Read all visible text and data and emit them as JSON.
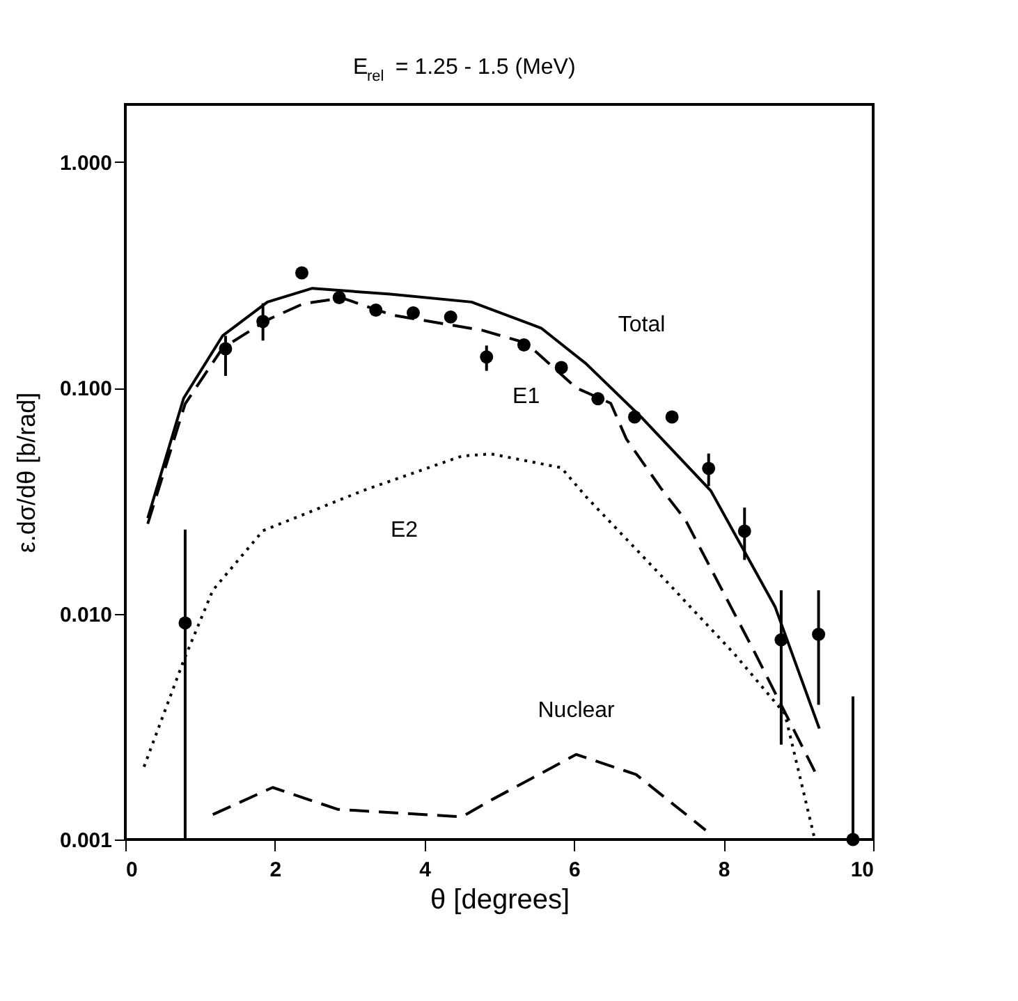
{
  "chart_data": {
    "type": "line",
    "title": "E$_{rel}$= 1.25 - 1.5 (MeV)",
    "xlabel": "θ  [degrees]",
    "ylabel": "ε.dσ/dθ  [b/rad]",
    "log": "y",
    "xlim": [
      0,
      10
    ],
    "ylim": [
      0.001,
      1.8
    ],
    "xticks": [
      0,
      2,
      4,
      6,
      8,
      10
    ],
    "yticks": [
      {
        "value": 0.001,
        "label": "0.001"
      },
      {
        "value": 0.01,
        "label": "0.010"
      },
      {
        "value": 0.1,
        "label": "0.100"
      },
      {
        "value": 1,
        "label": "1.000"
      }
    ],
    "grid": false,
    "series": [
      {
        "name": "Total",
        "color": "#000000",
        "line_style": "solid",
        "x": [
          0.3,
          0.78,
          1.3,
          1.9,
          2.5,
          3.54,
          4.63,
          5.56,
          6.16,
          6.92,
          7.83,
          8.69,
          9.28
        ],
        "values": [
          0.0265,
          0.09,
          0.17,
          0.24,
          0.276,
          0.26,
          0.24,
          0.184,
          0.128,
          0.073,
          0.035,
          0.0107,
          0.0031
        ]
      },
      {
        "name": "E1",
        "color": "#000000",
        "line_style": "dashed",
        "x": [
          0.3,
          0.8,
          1.3,
          1.9,
          2.38,
          2.9,
          3.57,
          4.77,
          5.36,
          6.03,
          6.49,
          6.7,
          7.16,
          7.49,
          8.4,
          9.22
        ],
        "values": [
          0.025,
          0.085,
          0.15,
          0.2,
          0.236,
          0.25,
          0.21,
          0.18,
          0.158,
          0.1,
          0.0855,
          0.0594,
          0.036,
          0.026,
          0.0069,
          0.002
        ]
      },
      {
        "name": "E2",
        "color": "#000000",
        "line_style": "dotted",
        "x": [
          0.25,
          0.78,
          1.17,
          1.84,
          3.17,
          4.5,
          4.89,
          5.83,
          6.16,
          7.16,
          8.15,
          8.82,
          9.22
        ],
        "values": [
          0.0021,
          0.0062,
          0.0127,
          0.0233,
          0.035,
          0.0499,
          0.051,
          0.0443,
          0.033,
          0.0148,
          0.0066,
          0.0036,
          0.001
        ]
      },
      {
        "name": "Nuclear",
        "color": "#000000",
        "line_style": "dashed",
        "x": [
          1.17,
          1.97,
          2.84,
          4.5,
          4.9,
          6.03,
          6.83,
          7.76
        ],
        "values": [
          0.00129,
          0.0017,
          0.00136,
          0.00126,
          0.0015,
          0.00238,
          0.00194,
          0.0011
        ]
      },
      {
        "type": "scatter",
        "color": "#000000",
        "marker": "circle",
        "x": [
          0.8,
          1.34,
          1.84,
          2.36,
          2.86,
          3.35,
          3.85,
          4.35,
          4.83,
          5.33,
          5.83,
          6.32,
          6.81,
          7.31,
          7.8,
          8.28,
          8.77,
          9.27,
          9.73
        ],
        "values": [
          0.0091,
          0.149,
          0.197,
          0.323,
          0.251,
          0.221,
          0.215,
          0.206,
          0.137,
          0.155,
          0.123,
          0.0895,
          0.0743,
          0.0743,
          0.044,
          0.0232,
          0.00766,
          0.0081,
          0.001
        ],
        "errors": [
          [
            0.001,
            0.0236
          ],
          [
            0.113,
            0.17
          ],
          [
            0.162,
            0.237
          ],
          null,
          null,
          null,
          null,
          null,
          [
            0.119,
            0.154
          ],
          null,
          null,
          null,
          null,
          null,
          [
            0.0367,
            0.0512
          ],
          [
            0.0173,
            0.0295
          ],
          [
            0.00263,
            0.0127
          ],
          [
            0.00395,
            0.0127
          ],
          [
            0.001,
            0.0043
          ]
        ]
      }
    ]
  }
}
